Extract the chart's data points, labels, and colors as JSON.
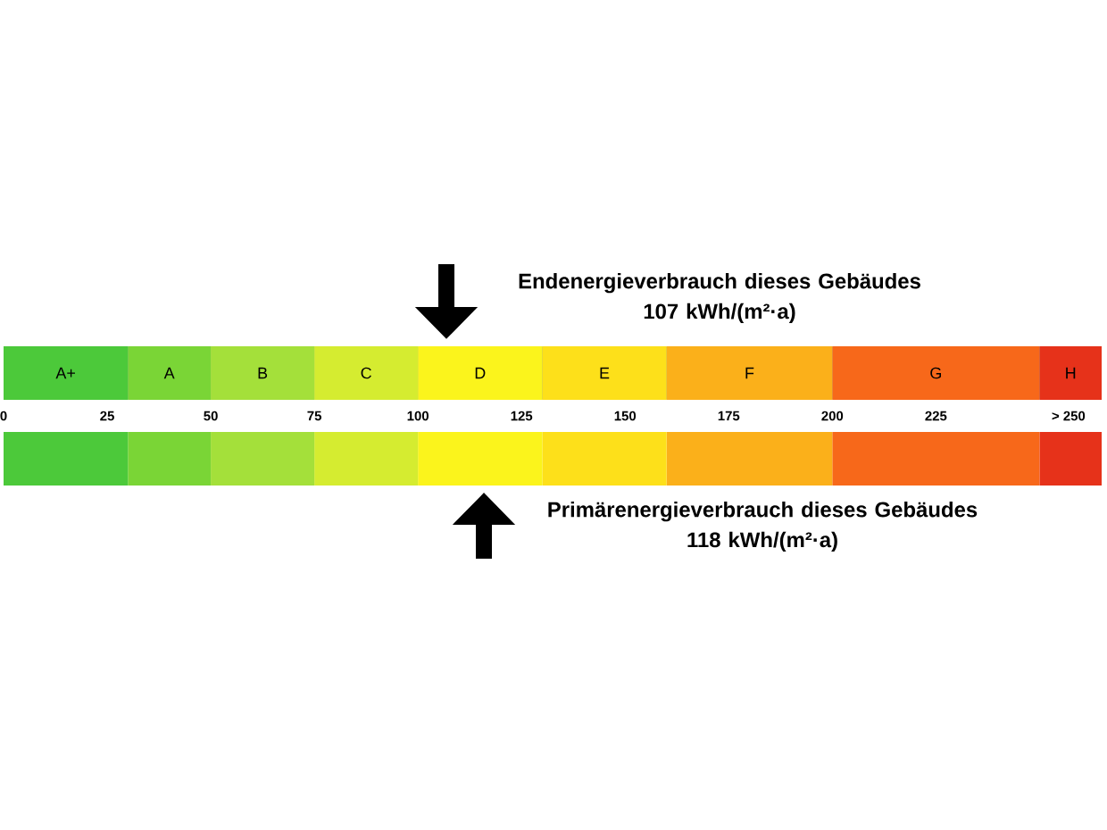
{
  "chart_data": {
    "type": "bar",
    "orientation": "horizontal",
    "stacked": true,
    "categories": [
      null,
      null
    ],
    "xlim": [
      0,
      265
    ],
    "xticks": [
      0,
      25,
      50,
      75,
      100,
      125,
      150,
      175,
      200,
      225,
      {
        "value": 257,
        "label": "> 250"
      }
    ],
    "series": [
      {
        "name": "A+",
        "color": "#4cc93a",
        "values": [
          30,
          30
        ]
      },
      {
        "name": "A",
        "color": "#7ad536",
        "values": [
          20,
          20
        ]
      },
      {
        "name": "B",
        "color": "#a4e03a",
        "values": [
          25,
          25
        ]
      },
      {
        "name": "C",
        "color": "#d5ec30",
        "values": [
          25,
          25
        ]
      },
      {
        "name": "D",
        "color": "#fbf41c",
        "values": [
          30,
          30
        ]
      },
      {
        "name": "E",
        "color": "#fde01a",
        "values": [
          30,
          30
        ]
      },
      {
        "name": "F",
        "color": "#fbb01a",
        "values": [
          40,
          40
        ]
      },
      {
        "name": "G",
        "color": "#f7681a",
        "values": [
          50,
          50
        ]
      },
      {
        "name": "H",
        "color": "#e6321a",
        "values": [
          15,
          15
        ]
      }
    ],
    "annotations": [
      "Endenergieverbrauch dieses Gebäudes 107 kWh/(m²·a)",
      "Primärenergieverbrauch dieses Gebäudes 118 kWh/(m²·a)"
    ]
  }
}
